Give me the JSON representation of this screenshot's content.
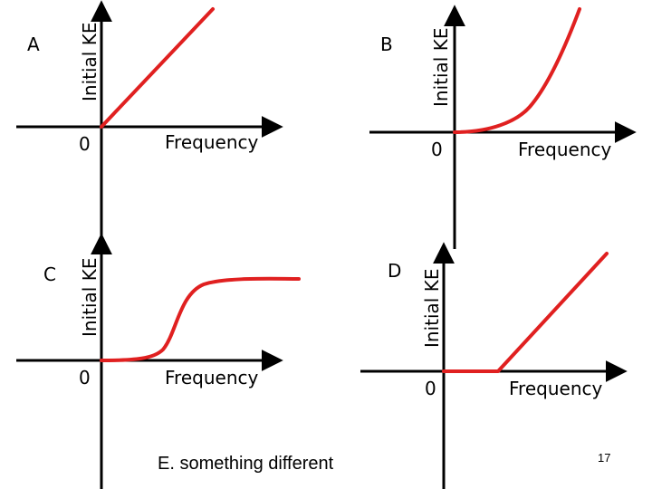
{
  "slide": {
    "page_number": "17",
    "footer_option": "E. something different",
    "colors": {
      "axis": "#000000",
      "curve": "#e02020",
      "background": "#ffffff"
    }
  },
  "panels": [
    {
      "id": "A",
      "letter": "A",
      "ylabel": "Initial KE",
      "xlabel": "Frequency",
      "origin_label": "0",
      "curve": "linear-through-origin"
    },
    {
      "id": "B",
      "letter": "B",
      "ylabel": "Initial KE",
      "xlabel": "Frequency",
      "origin_label": "0",
      "curve": "increasing-convex-from-origin"
    },
    {
      "id": "C",
      "letter": "C",
      "ylabel": "Initial KE",
      "xlabel": "Frequency",
      "origin_label": "0",
      "curve": "sigmoid-plateau"
    },
    {
      "id": "D",
      "letter": "D",
      "ylabel": "Initial KE",
      "xlabel": "Frequency",
      "origin_label": "0",
      "curve": "zero-then-linear-above-threshold"
    }
  ]
}
